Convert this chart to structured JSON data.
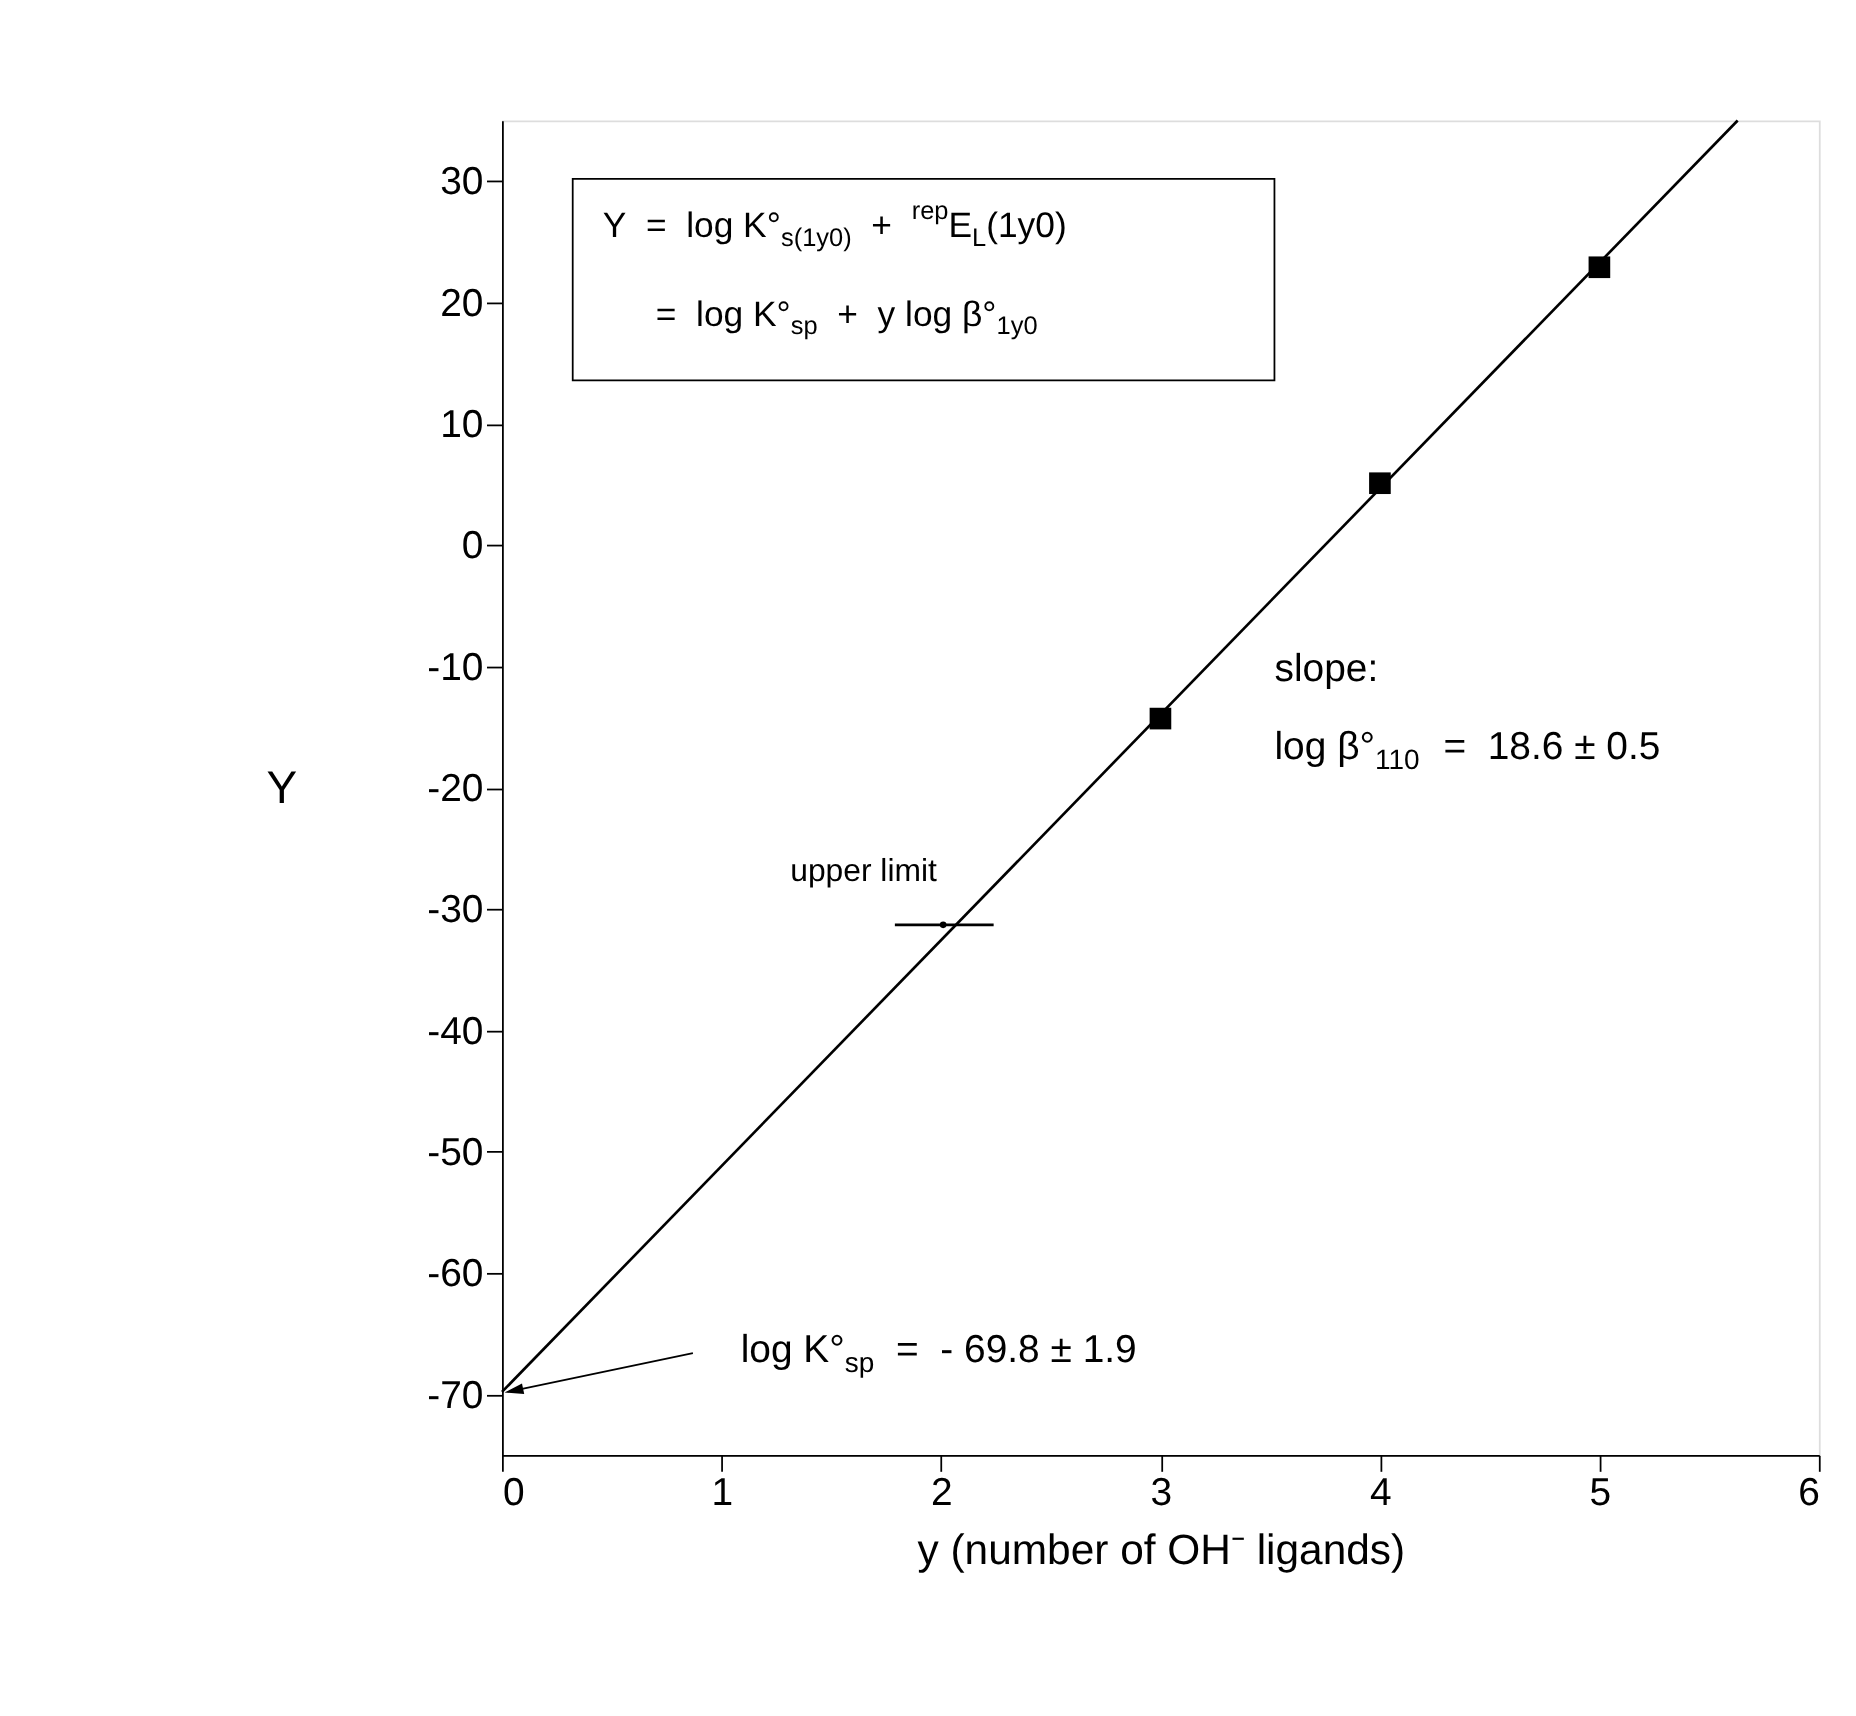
{
  "chart_data": {
    "type": "scatter",
    "xlabel": "y (number of OH⁻ ligands)",
    "ylabel": "Y",
    "xlim": [
      0,
      6
    ],
    "xticks": [
      0,
      1,
      2,
      3,
      4,
      5,
      6
    ],
    "ylim": [
      -75,
      35
    ],
    "yticks": [
      -70,
      -60,
      -50,
      -40,
      -30,
      -20,
      -10,
      0,
      10,
      20,
      30
    ],
    "grid": false,
    "series": [
      {
        "marker": "square",
        "color": "#000000",
        "x": [
          3,
          4,
          5
        ],
        "values": [
          -14.3,
          5.1,
          22.9
        ]
      },
      {
        "marker": "circle",
        "color": "#000000",
        "x": [
          2.01
        ],
        "values": [
          -31.3
        ],
        "xerrors": [
          [
            1.79,
            2.24
          ]
        ]
      },
      {
        "type": "line",
        "color": "#000000",
        "x": [
          0,
          5.63
        ],
        "values": [
          -69.8,
          35
        ]
      }
    ],
    "annotations": [
      "Y  =  log K°$_{s(1y0)}$  +  $^{rep}$E$_{L}$(1y0)",
      "=  log K°$_{sp}$  +  y log β°$_{1y0}$",
      "slope:",
      "log β°$_{110}$  =  18.6 ± 0.5",
      {
        "text": "upper limit",
        "x": 2.01,
        "y": -31.3
      },
      {
        "text": "log K°$_{sp}$  =  - 69.8 ± 1.9",
        "x": 0,
        "y": -69.8
      }
    ]
  }
}
